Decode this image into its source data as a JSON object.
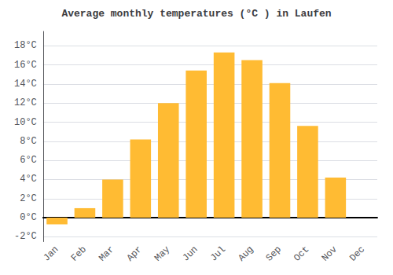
{
  "chart_data": {
    "type": "bar",
    "title": "Average monthly temperatures (°C ) in Laufen",
    "categories": [
      "Jan",
      "Feb",
      "Mar",
      "Apr",
      "May",
      "Jun",
      "Jul",
      "Aug",
      "Sep",
      "Oct",
      "Nov",
      "Dec"
    ],
    "values": [
      -0.7,
      1.0,
      4.0,
      8.2,
      12.0,
      15.4,
      17.3,
      16.5,
      14.1,
      9.6,
      4.2,
      0.0
    ],
    "color": "#FFBB33",
    "ylim": [
      -2.5,
      19.5
    ],
    "yticks": [
      {
        "value": -2,
        "label": "-2°C"
      },
      {
        "value": 0,
        "label": "0°C"
      },
      {
        "value": 2,
        "label": "2°C"
      },
      {
        "value": 4,
        "label": "4°C"
      },
      {
        "value": 6,
        "label": "6°C"
      },
      {
        "value": 8,
        "label": "8°C"
      },
      {
        "value": 10,
        "label": "10°C"
      },
      {
        "value": 12,
        "label": "12°C"
      },
      {
        "value": 14,
        "label": "14°C"
      },
      {
        "value": 16,
        "label": "16°C"
      },
      {
        "value": 18,
        "label": "18°C"
      }
    ],
    "grid": true
  }
}
